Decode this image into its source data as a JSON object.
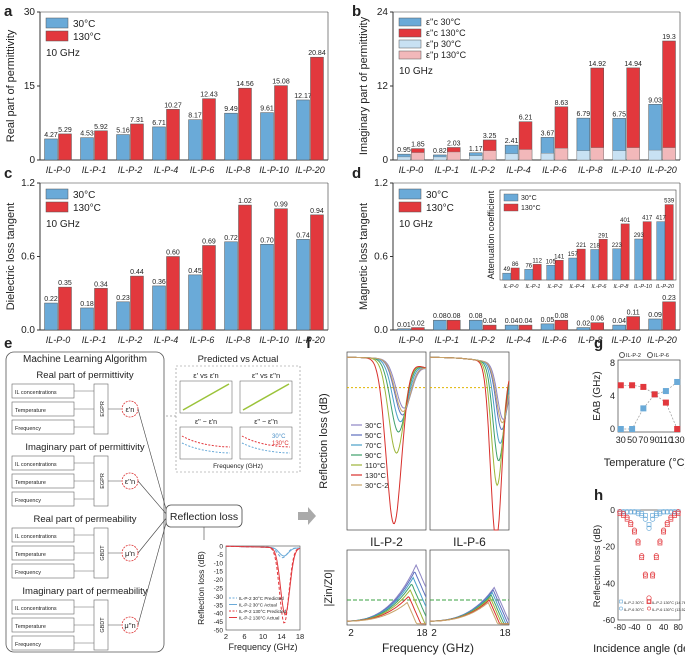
{
  "figure": {
    "title": "Figure panels a-h: permittivity, loss tangents, ML workflow, reflection loss"
  },
  "chart_data": [
    {
      "panel": "a",
      "type": "bar",
      "frequency_label": "10 GHz",
      "categories": [
        "IL-P-0",
        "IL-P-1",
        "IL-P-2",
        "IL-P-4",
        "IL-P-6",
        "IL-P-8",
        "IL-P-10",
        "IL-P-20"
      ],
      "series": [
        {
          "name": "30°C",
          "color": "#6aaad8",
          "values": [
            4.27,
            4.53,
            5.16,
            6.71,
            8.17,
            9.49,
            9.61,
            12.17
          ],
          "labels": [
            "4.27",
            "4.53",
            "5.16",
            "6.71",
            "8.17",
            "9.49",
            "9.61",
            "12.17"
          ]
        },
        {
          "name": "130°C",
          "color": "#e2383d",
          "values": [
            5.29,
            5.92,
            7.31,
            10.27,
            12.43,
            14.56,
            15.08,
            20.84
          ],
          "labels": [
            "5.29",
            "5.92",
            "7.31",
            "10.27",
            "12.43",
            "14.56",
            "15.08",
            "20.84"
          ]
        }
      ],
      "ylabel": "Real part of permittivity",
      "ylim": [
        0,
        30
      ],
      "yticks": [
        0,
        15,
        30
      ]
    },
    {
      "panel": "b",
      "type": "bar",
      "frequency_label": "10 GHz",
      "categories": [
        "IL-P-0",
        "IL-P-1",
        "IL-P-2",
        "IL-P-4",
        "IL-P-6",
        "IL-P-8",
        "IL-P-10",
        "IL-P-20"
      ],
      "legend": [
        "ε''c 30°C",
        "ε''c 130°C",
        "ε''p 30°C",
        "ε''p 130°C"
      ],
      "series": [
        {
          "name": "ε''c 30°C",
          "color": "#6aaad8",
          "values": [
            0.95,
            0.82,
            1.17,
            2.41,
            3.67,
            6.79,
            6.75,
            9.03
          ],
          "labels": [
            "0.95",
            "0.82",
            "1.17",
            "2.41",
            "3.67",
            "6.79",
            "6.75",
            "9.03"
          ]
        },
        {
          "name": "ε''c 130°C",
          "color": "#e2383d",
          "values": [
            1.85,
            2.03,
            3.25,
            6.21,
            8.63,
            14.92,
            14.94,
            19.3
          ],
          "labels": [
            "1.85",
            "2.03",
            "3.25",
            "6.21",
            "8.63",
            "14.92",
            "14.94",
            "19.3"
          ]
        },
        {
          "name": "ε''p 30°C",
          "color": "#c8e1f3",
          "values": [
            0.5,
            0.5,
            0.7,
            1.0,
            1.1,
            1.5,
            1.5,
            1.6
          ]
        },
        {
          "name": "ε''p 130°C",
          "color": "#f2b8ba",
          "values": [
            1.2,
            1.3,
            1.5,
            1.7,
            1.9,
            2.0,
            2.0,
            2.0
          ]
        }
      ],
      "ylabel": "Imaginary part of permittivity",
      "ylim": [
        0,
        24
      ],
      "yticks": [
        0,
        12,
        24
      ]
    },
    {
      "panel": "c",
      "type": "bar",
      "frequency_label": "10 GHz",
      "categories": [
        "IL-P-0",
        "IL-P-1",
        "IL-P-2",
        "IL-P-4",
        "IL-P-6",
        "IL-P-8",
        "IL-P-10",
        "IL-P-20"
      ],
      "series": [
        {
          "name": "30°C",
          "color": "#6aaad8",
          "values": [
            0.22,
            0.18,
            0.23,
            0.36,
            0.45,
            0.72,
            0.7,
            0.74
          ],
          "labels": [
            "0.22",
            "0.18",
            "0.23",
            "0.36",
            "0.45",
            "0.72",
            "0.70",
            "0.74"
          ]
        },
        {
          "name": "130°C",
          "color": "#e2383d",
          "values": [
            0.35,
            0.34,
            0.44,
            0.6,
            0.69,
            1.02,
            0.99,
            0.94
          ],
          "labels": [
            "0.35",
            "0.34",
            "0.44",
            "0.60",
            "0.69",
            "1.02",
            "0.99",
            "0.94"
          ]
        }
      ],
      "ylabel": "Dielectric loss tangent",
      "ylim": [
        0,
        1.2
      ],
      "yticks": [
        "0.0",
        "0.6",
        "1.2"
      ]
    },
    {
      "panel": "d",
      "type": "bar",
      "frequency_label": "10 GHz",
      "categories": [
        "IL-P-0",
        "IL-P-1",
        "IL-P-2",
        "IL-P-4",
        "IL-P-6",
        "IL-P-8",
        "IL-P-10",
        "IL-P-20"
      ],
      "series": [
        {
          "name": "30°C",
          "color": "#6aaad8",
          "values": [
            0.01,
            0.08,
            0.08,
            0.04,
            0.05,
            0.02,
            0.04,
            0.09
          ],
          "labels": [
            "0.01",
            "0.08",
            "0.08",
            "0.04",
            "0.05",
            "0.02",
            "0.04",
            "0.09"
          ]
        },
        {
          "name": "130°C",
          "color": "#e2383d",
          "values": [
            0.02,
            0.08,
            0.04,
            0.04,
            0.08,
            0.06,
            0.11,
            0.23
          ],
          "labels": [
            "0.02",
            "0.08",
            "0.04",
            "0.04",
            "0.08",
            "0.06",
            "0.11",
            "0.23"
          ]
        }
      ],
      "ylabel": "Magnetic loss tangent",
      "ylim": [
        0,
        1.2
      ],
      "yticks": [
        "0.0",
        "0.6",
        "1.2"
      ],
      "inset": {
        "ylabel": "Attenuation coefficient",
        "legend": [
          "30°C",
          "130°C"
        ],
        "categories": [
          "IL-P-0",
          "IL-P-1",
          "IL-P-2",
          "IL-P-4",
          "IL-P-6",
          "IL-P-8",
          "IL-P-10",
          "IL-P-20"
        ],
        "series": [
          {
            "name": "30°C",
            "values": [
              49,
              76,
              105,
              157,
              218,
              223,
              293,
              417
            ]
          },
          {
            "name": "130°C",
            "values": [
              86,
              112,
              141,
              221,
              291,
              401,
              417,
              539
            ]
          }
        ],
        "labels_30": [
          "49",
          "76",
          "105",
          "157",
          "218",
          "223",
          "293",
          "417"
        ],
        "labels_130": [
          "86",
          "112",
          "141",
          "221",
          "291",
          "401",
          "417",
          "539"
        ],
        "ylim": [
          0,
          600
        ]
      }
    },
    {
      "panel": "f",
      "type": "line",
      "titles": [
        "IL-P-2",
        "IL-P-6"
      ],
      "legend": [
        "30°C",
        "50°C",
        "70°C",
        "90°C",
        "110°C",
        "130°C",
        "30°C-2"
      ],
      "series_colors": [
        "#8e86c4",
        "#5d6fbf",
        "#4aa0c9",
        "#3ea06a",
        "#9db53a",
        "#d8302c",
        "#c8a56a"
      ],
      "x": [
        2,
        4,
        6,
        8,
        10,
        12,
        14,
        16,
        18
      ],
      "rl_ylabel": "Reflection loss (dB)",
      "rl_ylim": [
        -50,
        0
      ],
      "rl_ref": -10,
      "z_ylabel": "|Zin/Z0|",
      "z_ylim": [
        0,
        3
      ],
      "z_ref": 1,
      "xlabel": "Frequency (GHz)",
      "xticks": [
        "2",
        "18"
      ],
      "rl_ilp2": {
        "min_freq": [
          13.5,
          13.2,
          12.8,
          12.4,
          12.0,
          11.5,
          13.3
        ],
        "min_depth": [
          -13,
          -15,
          -17,
          -20,
          -26,
          -46,
          -14
        ]
      },
      "rl_ilp6": {
        "min_freq": [
          16.8,
          16.5,
          16.2,
          15.9,
          15.6,
          15.4,
          16.6
        ],
        "min_depth": [
          -15,
          -18,
          -22,
          -27,
          -34,
          -50,
          -16
        ]
      }
    },
    {
      "panel": "g",
      "type": "line",
      "legend": [
        "IL-P-2",
        "IL-P-6"
      ],
      "x": [
        30,
        50,
        70,
        90,
        110,
        130
      ],
      "series": [
        {
          "name": "IL-P-2",
          "color": "#6aaad8",
          "values": [
            0,
            0,
            2.5,
            4.2,
            4.6,
            5.7
          ]
        },
        {
          "name": "IL-P-6",
          "color": "#e2383d",
          "values": [
            5.3,
            5.3,
            5.1,
            4.2,
            3.2,
            0
          ]
        }
      ],
      "xlabel": "Temperature (°C)",
      "ylabel": "EAB (GHz)",
      "xticks": [
        "30",
        "50",
        "70",
        "90",
        "110",
        "130"
      ],
      "yticks": [
        "0",
        "4",
        "8"
      ],
      "ylim": [
        0,
        8
      ]
    },
    {
      "panel": "h",
      "type": "scatter",
      "legend": [
        "IL-P-2 30°C",
        "IL-P-2 130°C (14.76 GHz)",
        "IL-P-6 30°C",
        "IL-P-6 130°C (13.52 GHz)"
      ],
      "x": [
        -80,
        -70,
        -60,
        -50,
        -40,
        -30,
        -20,
        -10,
        0,
        10,
        20,
        30,
        40,
        50,
        60,
        70,
        80
      ],
      "series": [
        {
          "name": "IL-P-2 30°C",
          "values": [
            -1,
            -1,
            -1,
            -1,
            -1,
            -1,
            -2,
            -3,
            -8,
            -3,
            -2,
            -1,
            -1,
            -1,
            -1,
            -1,
            -1
          ]
        },
        {
          "name": "IL-P-2 130°C (14.76 GHz)",
          "values": [
            -2,
            -3,
            -5,
            -8,
            -12,
            -18,
            -26,
            -36,
            -50,
            -36,
            -26,
            -18,
            -12,
            -8,
            -5,
            -3,
            -2
          ]
        },
        {
          "name": "IL-P-6 30°C",
          "values": [
            -1,
            -1,
            -1,
            -1,
            -1,
            -2,
            -3,
            -5,
            -10,
            -5,
            -3,
            -2,
            -1,
            -1,
            -1,
            -1,
            -1
          ]
        },
        {
          "name": "IL-P-6 130°C (13.52 GHz)",
          "values": [
            -1,
            -2,
            -4,
            -7,
            -11,
            -17,
            -25,
            -35,
            -48,
            -35,
            -25,
            -17,
            -11,
            -7,
            -4,
            -2,
            -1
          ]
        }
      ],
      "xlabel": "Incidence angle (deg)",
      "ylabel": "Reflection loss (dB)",
      "xticks": [
        "-80",
        "-40",
        "0",
        "40",
        "80"
      ],
      "yticks": [
        "0",
        "-20",
        "-40",
        "-60"
      ],
      "ylim": [
        -60,
        0
      ]
    }
  ],
  "workflow": {
    "title": "Machine Learning Algorithm",
    "groups": [
      {
        "title": "Real part of permittivity",
        "model": "EGPR",
        "output": "ε'n"
      },
      {
        "title": "Imaginary part of permittivity",
        "model": "EGPR",
        "output": "ε''n"
      },
      {
        "title": "Real part of permeability",
        "model": "GBDT",
        "output": "μ'n"
      },
      {
        "title": "Imaginary part of permeability",
        "model": "GBDT",
        "output": "μ''n"
      }
    ],
    "inputs": [
      "IL concentrations",
      "Temperature",
      "Frequency"
    ],
    "center": "Reflection loss",
    "pva_title": "Predicted vs Actual",
    "pva_sub": [
      "ε' vs ε'n",
      "ε'' vs ε''n"
    ],
    "pva_bottom": [
      "ε'' − ε'n",
      "ε'' − ε''n"
    ],
    "pva_temps": [
      "30°C",
      "130°C"
    ],
    "pva_xlabel": "Frequency (GHz)",
    "rl_small": {
      "ylabel": "Reflection loss (dB)",
      "xlabel": "Frequency (GHz)",
      "xticks": [
        "2",
        "6",
        "10",
        "14",
        "18"
      ],
      "yticks": [
        "0",
        "-5",
        "-10",
        "-15",
        "-20",
        "-25",
        "-30",
        "-35",
        "-40",
        "-45",
        "-50"
      ],
      "legend": [
        "IL-P-2 30°C Predicted",
        "IL-P-2 30°C Actual",
        "IL-P-2 130°C Predicted",
        "IL-P-2 130°C Actual"
      ]
    }
  },
  "panel_letters": [
    "a",
    "b",
    "c",
    "d",
    "e",
    "f",
    "g",
    "h"
  ]
}
